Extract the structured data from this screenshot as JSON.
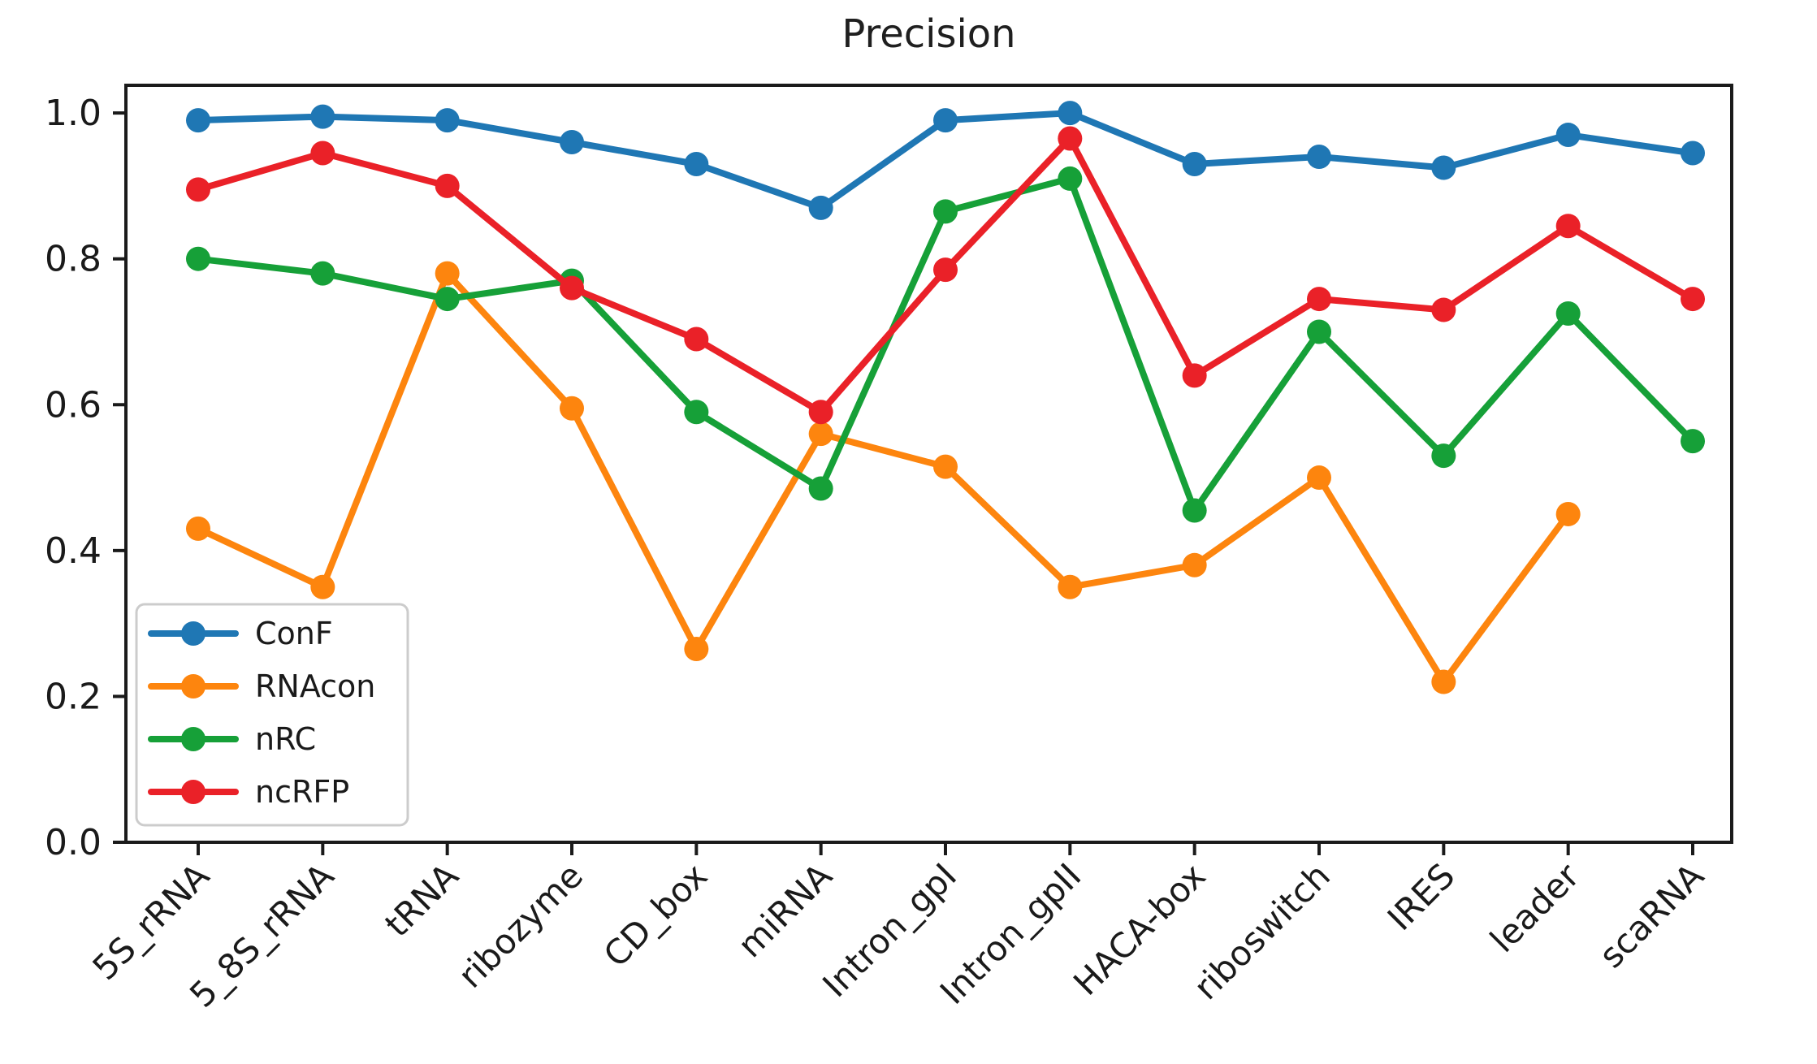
{
  "figure": {
    "title": "Precision"
  },
  "chart_data": {
    "type": "line",
    "title": "Precision",
    "xlabel": "",
    "ylabel": "",
    "categories": [
      "5S_rRNA",
      "5_8S_rRNA",
      "tRNA",
      "ribozyme",
      "CD_box",
      "miRNA",
      "Intron_gpI",
      "Intron_gpII",
      "HACA-box",
      "riboswitch",
      "IRES",
      "leader",
      "scaRNA"
    ],
    "series": [
      {
        "name": "ConF",
        "color": "#1f77b4",
        "values": [
          0.99,
          0.995,
          0.99,
          0.96,
          0.93,
          0.87,
          0.99,
          1.0,
          0.93,
          0.94,
          0.925,
          0.97,
          0.945
        ]
      },
      {
        "name": "RNAcon",
        "color": "#fd850e",
        "values": [
          0.43,
          0.35,
          0.78,
          0.595,
          0.265,
          0.56,
          0.515,
          0.35,
          0.38,
          0.5,
          0.22,
          0.45,
          null
        ]
      },
      {
        "name": "nRC",
        "color": "#16a038",
        "values": [
          0.8,
          0.78,
          0.745,
          0.77,
          0.59,
          0.485,
          0.865,
          0.91,
          0.455,
          0.7,
          0.53,
          0.725,
          0.55
        ]
      },
      {
        "name": "ncRFP",
        "color": "#ea2128",
        "values": [
          0.895,
          0.945,
          0.9,
          0.76,
          0.69,
          0.59,
          0.785,
          0.965,
          0.64,
          0.745,
          0.73,
          0.845,
          0.745
        ]
      }
    ],
    "ylim": [
      0.0,
      1.038
    ],
    "yticks": [
      0.0,
      0.2,
      0.4,
      0.6,
      0.8,
      1.0
    ],
    "grid": false,
    "legend_position": "lower left",
    "axis_color": "#1a1a1a",
    "background": "#ffffff"
  }
}
